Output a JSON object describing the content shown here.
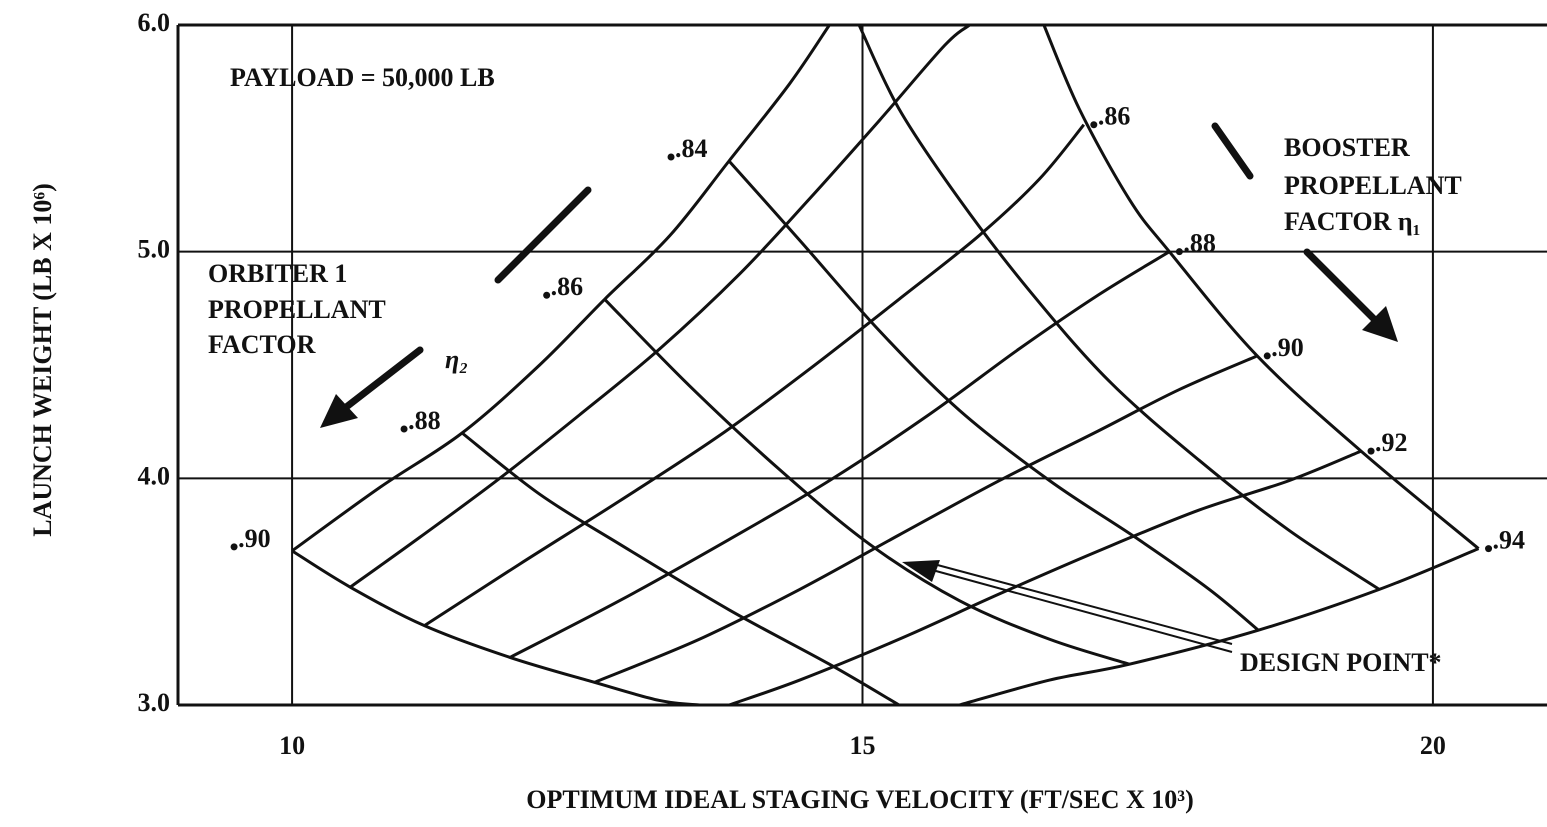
{
  "chart_data": {
    "type": "carpet",
    "ylabel": "LAUNCH WEIGHT (LB X 10⁶)",
    "xlabel": "OPTIMUM IDEAL STAGING VELOCITY (FT/SEC X 10³)",
    "xlim": [
      9,
      21
    ],
    "xticks": [
      10,
      15,
      20
    ],
    "ylim": [
      3,
      6
    ],
    "yticks": [
      {
        "value": 3,
        "label": "3.0"
      },
      {
        "value": 4,
        "label": "4.0"
      },
      {
        "value": 5,
        "label": "5.0"
      },
      {
        "value": 6,
        "label": "6.0"
      }
    ],
    "grid": true,
    "color": "#111111",
    "annotations": [
      "PAYLOAD = 50,000 LB",
      "BOOSTER",
      "PROPELLANT",
      "FACTOR η₁",
      "ORBITER 1",
      "PROPELLANT",
      "FACTOR",
      "η₂",
      "DESIGN POINT*"
    ],
    "series": [
      {
        "x": [
          10.0,
          10.77,
          11.49,
          12.17,
          12.74,
          13.31,
          13.83,
          14.36,
          14.71
        ],
        "values": [
          3.68,
          3.96,
          4.2,
          4.5,
          4.79,
          5.07,
          5.4,
          5.74,
          6.0
        ]
      },
      {
        "x": [
          10.51,
          11.12,
          11.82,
          12.52,
          13.22,
          13.92,
          14.53,
          15.15,
          15.72,
          15.94
        ],
        "values": [
          3.52,
          3.74,
          4.0,
          4.28,
          4.57,
          4.9,
          5.23,
          5.58,
          5.91,
          6.0
        ]
      },
      {
        "name": ".86",
        "x": [
          11.16,
          11.99,
          12.87,
          13.75,
          14.53,
          15.32,
          16.02,
          16.55,
          16.94
        ],
        "values": [
          3.35,
          3.62,
          3.9,
          4.19,
          4.48,
          4.79,
          5.07,
          5.32,
          5.56
        ]
      },
      {
        "name": ".88",
        "x": [
          11.91,
          12.87,
          13.83,
          14.71,
          15.58,
          16.37,
          17.07,
          17.69
        ],
        "values": [
          3.21,
          3.46,
          3.73,
          3.99,
          4.28,
          4.57,
          4.81,
          5.0
        ]
      },
      {
        "name": ".90",
        "x": [
          12.65,
          13.57,
          14.45,
          15.32,
          16.2,
          17.07,
          17.77,
          18.46
        ],
        "values": [
          3.1,
          3.29,
          3.51,
          3.75,
          3.99,
          4.21,
          4.39,
          4.54
        ]
      },
      {
        "name": ".92",
        "x": [
          13.83,
          14.45,
          15.32,
          16.2,
          17.07,
          17.95,
          18.74,
          19.37
        ],
        "values": [
          3.0,
          3.11,
          3.29,
          3.49,
          3.68,
          3.86,
          3.99,
          4.12
        ]
      },
      {
        "name": ".94",
        "x": [
          15.85,
          16.64,
          17.34,
          18.47,
          19.53,
          20.4
        ],
        "values": [
          3.0,
          3.11,
          3.18,
          3.33,
          3.51,
          3.69
        ]
      },
      {
        "name": ".90",
        "x": [
          10.0,
          10.51,
          11.16,
          11.91,
          12.65,
          13.22,
          13.57
        ],
        "values": [
          3.68,
          3.52,
          3.35,
          3.21,
          3.1,
          3.02,
          3.0
        ]
      },
      {
        "name": ".88",
        "x": [
          11.49,
          12.17,
          12.87,
          13.83,
          14.71,
          15.32
        ],
        "values": [
          4.2,
          3.93,
          3.71,
          3.42,
          3.18,
          3.0
        ]
      },
      {
        "name": ".86",
        "x": [
          12.74,
          13.48,
          14.27,
          15.06,
          15.85,
          16.64,
          17.34
        ],
        "values": [
          4.79,
          4.41,
          4.04,
          3.71,
          3.46,
          3.29,
          3.18
        ]
      },
      {
        "name": ".84",
        "x": [
          13.83,
          14.45,
          15.15,
          15.85,
          16.64,
          17.42,
          18.04,
          18.47
        ],
        "values": [
          5.4,
          5.05,
          4.65,
          4.3,
          3.99,
          3.73,
          3.51,
          3.33
        ]
      },
      {
        "x": [
          14.97,
          15.32,
          15.85,
          16.46,
          17.16,
          17.95,
          18.74,
          19.53
        ],
        "values": [
          6.0,
          5.63,
          5.23,
          4.83,
          4.43,
          4.08,
          3.77,
          3.51
        ]
      },
      {
        "x": [
          16.59,
          16.9,
          17.34,
          17.69,
          18.46,
          19.37,
          20.4
        ],
        "values": [
          6.0,
          5.63,
          5.23,
          5.0,
          4.54,
          4.12,
          3.69
        ]
      }
    ]
  }
}
